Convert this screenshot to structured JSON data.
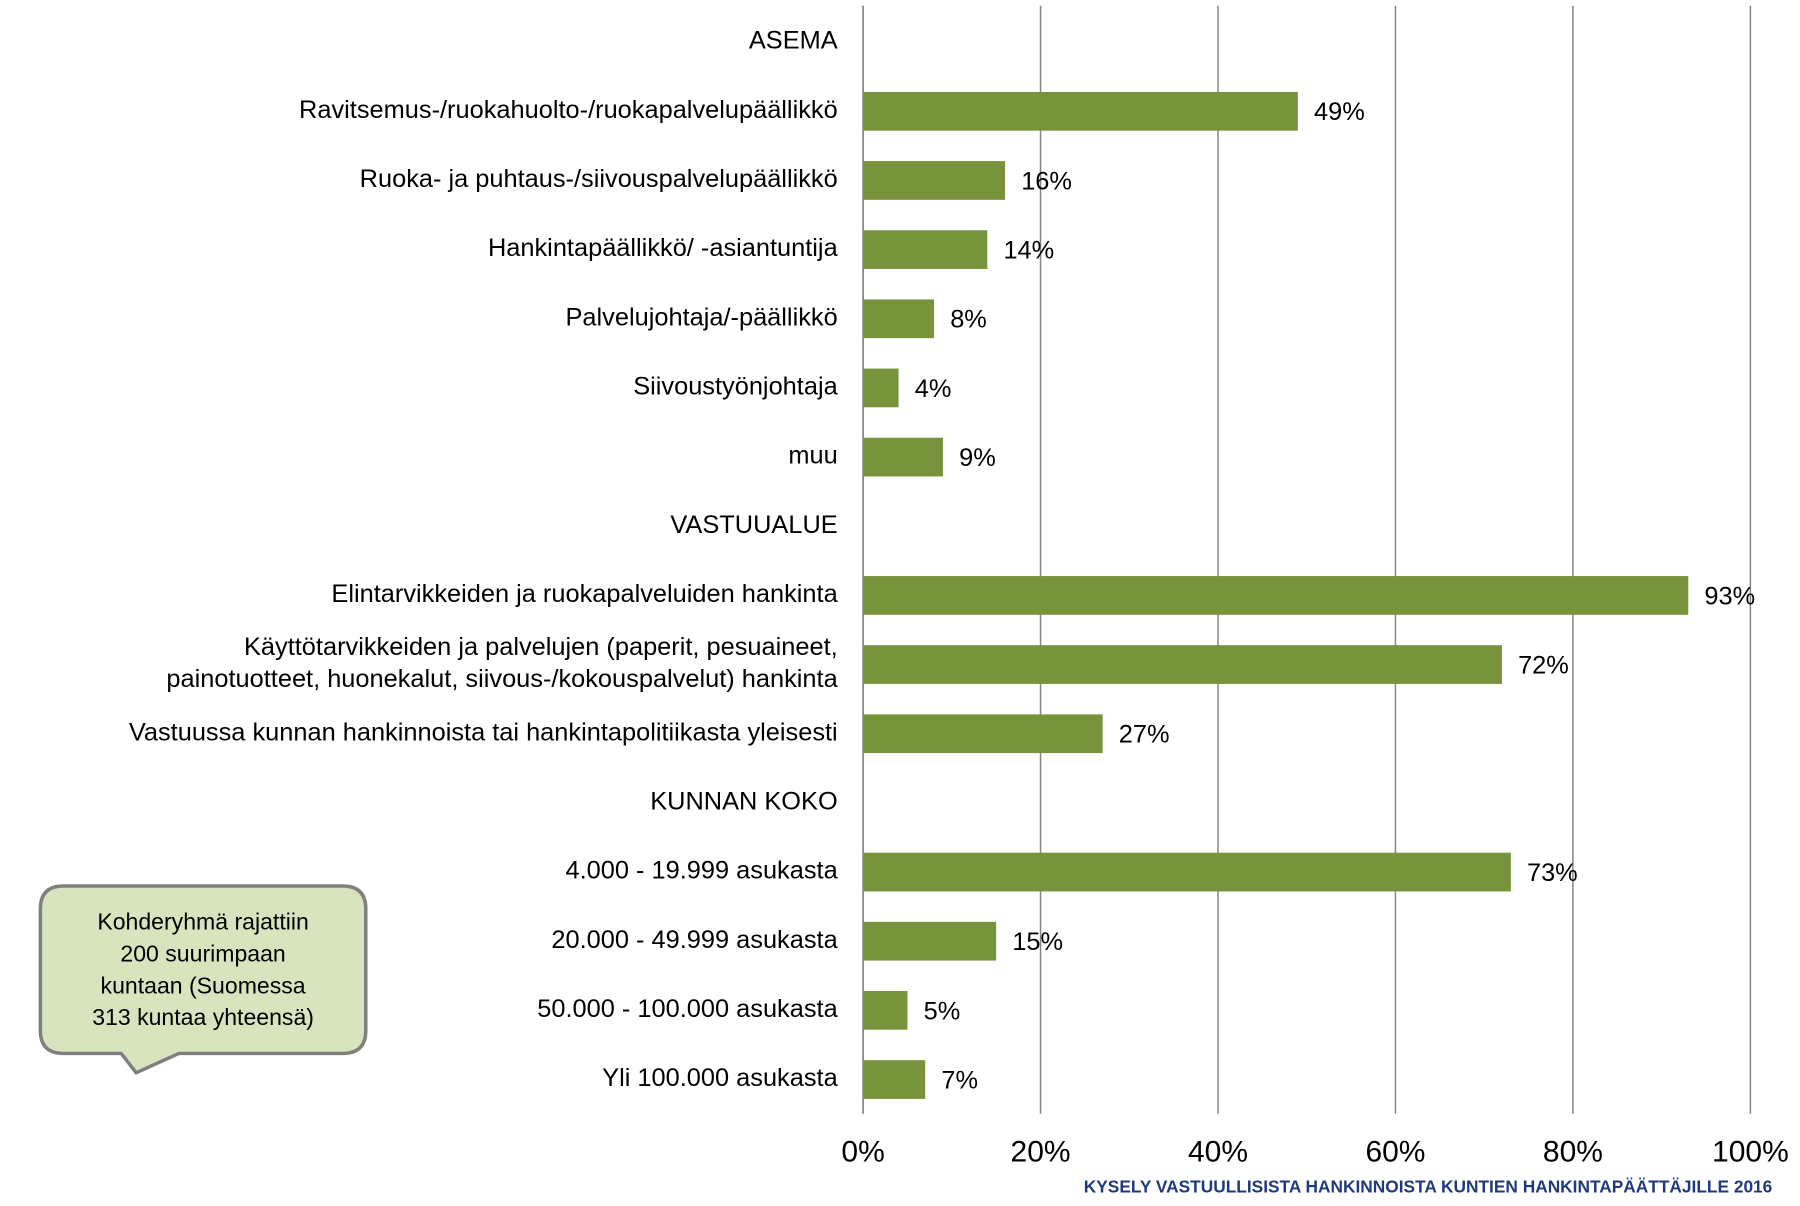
{
  "chart_data": {
    "type": "bar",
    "orientation": "horizontal",
    "categories": [
      "ASEMA",
      "Ravitsemus-/ruokahuolto-/ruokapalvelupäällikkö",
      "Ruoka- ja puhtaus-/siivouspalvelupäällikkö",
      "Hankintapäällikkö/ -asiantuntija",
      "Palvelujohtaja/-päällikkö",
      "Siivoustyönjohtaja",
      "muu",
      "VASTUUALUE",
      "Elintarvikkeiden ja ruokapalveluiden hankinta",
      [
        "Käyttötarvikkeiden ja palvelujen (paperit, pesuaineet,",
        "painotuotteet, huonekalut, siivous-/kokouspalvelut) hankinta"
      ],
      "Vastuussa kunnan hankinnoista tai hankintapolitiikasta yleisesti",
      "KUNNAN KOKO",
      "4.000 - 19.999 asukasta",
      "20.000 - 49.999 asukasta",
      "50.000 - 100.000 asukasta",
      "Yli 100.000 asukasta"
    ],
    "values": [
      null,
      49,
      16,
      14,
      8,
      4,
      9,
      null,
      93,
      72,
      27,
      null,
      73,
      15,
      5,
      7
    ],
    "value_labels": [
      null,
      "49%",
      "16%",
      "14%",
      "8%",
      "4%",
      "9%",
      null,
      "93%",
      "72%",
      "27%",
      null,
      "73%",
      "15%",
      "5%",
      "7%"
    ],
    "color": "#77933c",
    "xlim": [
      0,
      100
    ],
    "xticks": [
      {
        "value": 0,
        "label": "0%"
      },
      {
        "value": 20,
        "label": "20%"
      },
      {
        "value": 40,
        "label": "40%"
      },
      {
        "value": 60,
        "label": "60%"
      },
      {
        "value": 80,
        "label": "80%"
      },
      {
        "value": 100,
        "label": "100%"
      }
    ],
    "grid": true,
    "annotation": [
      "Kohderyhmä rajattiin",
      "200 suurimpaan",
      "kuntaan (Suomessa",
      "313 kuntaa yhteensä)"
    ],
    "footer": "KYSELY VASTUULLISISTA HANKINNOISTA KUNTIEN HANKINTAPÄÄTTÄJILLE 2016"
  }
}
